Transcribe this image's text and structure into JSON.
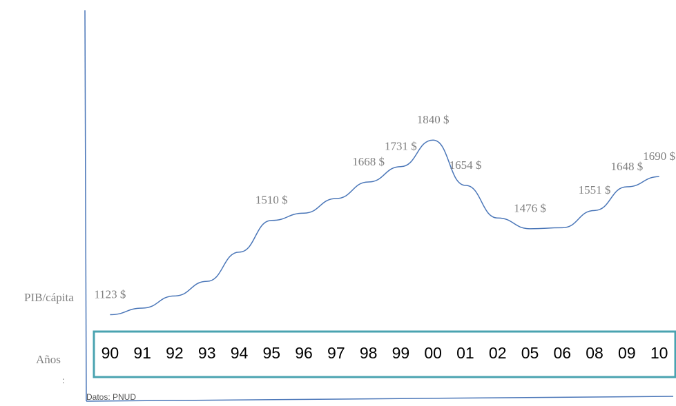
{
  "chart_data": {
    "type": "line",
    "y_label": "PIB/cápita",
    "x_label": "Años",
    "source": "Datos: PNUD",
    "note": ":",
    "categories": [
      "90",
      "91",
      "92",
      "93",
      "94",
      "95",
      "96",
      "97",
      "98",
      "99",
      "00",
      "01",
      "02",
      "05",
      "06",
      "08",
      "09",
      "10"
    ],
    "values": [
      1123,
      1150,
      1200,
      1260,
      1380,
      1510,
      1540,
      1600,
      1668,
      1731,
      1840,
      1654,
      1520,
      1476,
      1480,
      1551,
      1648,
      1690
    ],
    "value_labels": [
      "1123 $",
      null,
      null,
      null,
      null,
      "1510  $",
      null,
      null,
      "1668 $",
      "1731 $",
      "1840  $",
      "1654  $",
      null,
      "1476 $",
      null,
      "1551 $",
      "1648 $",
      "1690 $"
    ],
    "color": "#4a76b8",
    "ylim": [
      1000,
      1900
    ]
  }
}
